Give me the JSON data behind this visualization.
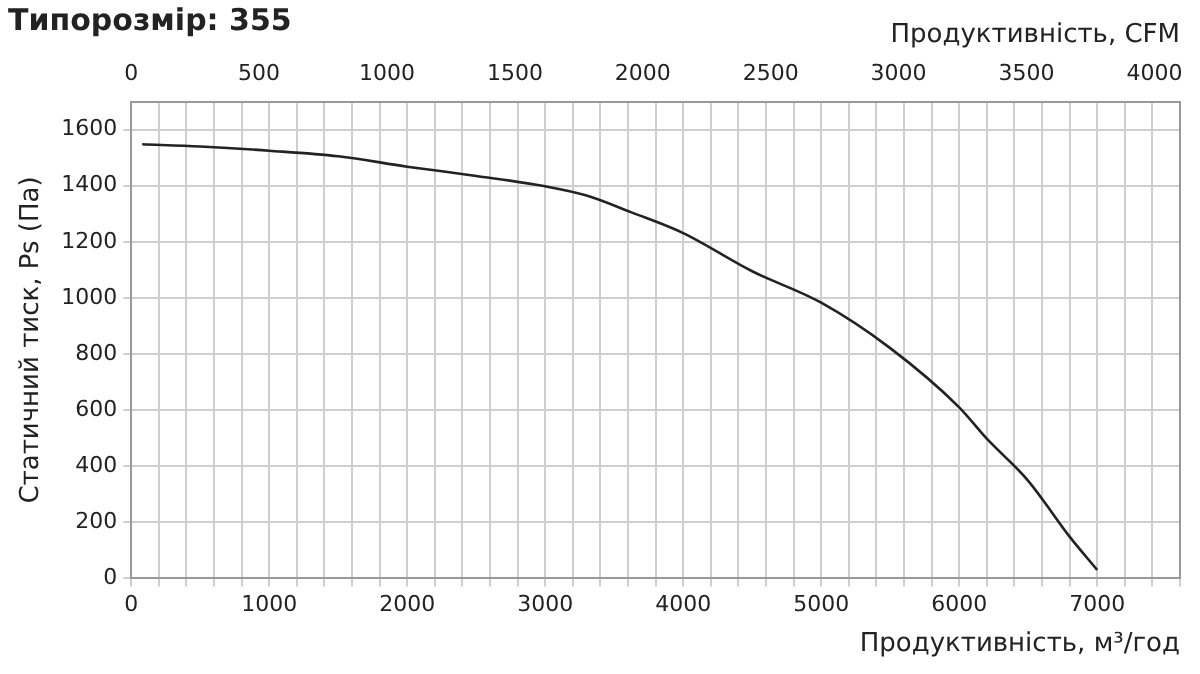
{
  "chart_data": {
    "type": "line",
    "title": "Типорозмір: 355",
    "xlabel": "Продуктивність, м³/год",
    "x2label": "Продуктивність, CFM",
    "ylabel": "Статичний тиск, Ps (Па)",
    "x": [
      80,
      500,
      1000,
      1500,
      2000,
      2500,
      3000,
      3300,
      3620,
      4000,
      4500,
      5000,
      5500,
      6000,
      6200,
      6500,
      6800,
      7000
    ],
    "series": [
      {
        "color": "#222222",
        "values": [
          1548,
          1540,
          1525,
          1505,
          1468,
          1435,
          1398,
          1365,
          1306,
          1231,
          1095,
          983,
          821,
          610,
          498,
          348,
          149,
          30
        ]
      }
    ],
    "marker": "none",
    "grid": true,
    "xlim": [
      0,
      7600
    ],
    "xticks": [
      0,
      {
        "value": 200,
        "label": null
      },
      {
        "value": 400,
        "label": null
      },
      {
        "value": 600,
        "label": null
      },
      {
        "value": 800,
        "label": null
      },
      1000,
      {
        "value": 1200,
        "label": null
      },
      {
        "value": 1400,
        "label": null
      },
      {
        "value": 1600,
        "label": null
      },
      {
        "value": 1800,
        "label": null
      },
      2000,
      {
        "value": 2200,
        "label": null
      },
      {
        "value": 2400,
        "label": null
      },
      {
        "value": 2600,
        "label": null
      },
      {
        "value": 2800,
        "label": null
      },
      3000,
      {
        "value": 3200,
        "label": null
      },
      {
        "value": 3400,
        "label": null
      },
      {
        "value": 3600,
        "label": null
      },
      {
        "value": 3800,
        "label": null
      },
      4000,
      {
        "value": 4200,
        "label": null
      },
      {
        "value": 4400,
        "label": null
      },
      {
        "value": 4600,
        "label": null
      },
      {
        "value": 4800,
        "label": null
      },
      5000,
      {
        "value": 5200,
        "label": null
      },
      {
        "value": 5400,
        "label": null
      },
      {
        "value": 5600,
        "label": null
      },
      {
        "value": 5800,
        "label": null
      },
      6000,
      {
        "value": 6200,
        "label": null
      },
      {
        "value": 6400,
        "label": null
      },
      {
        "value": 6600,
        "label": null
      },
      {
        "value": 6800,
        "label": null
      },
      7000,
      {
        "value": 7200,
        "label": null
      },
      {
        "value": 7400,
        "label": null
      },
      {
        "value": 7600,
        "label": null
      }
    ],
    "x2lim": [
      0,
      4100
    ],
    "x2ticks": [
      0,
      500,
      1000,
      1500,
      2000,
      2500,
      3000,
      3500,
      4000
    ],
    "ylim": [
      0,
      1700
    ],
    "yticks": [
      0,
      200,
      400,
      600,
      800,
      1000,
      1200,
      1400,
      1600
    ]
  }
}
